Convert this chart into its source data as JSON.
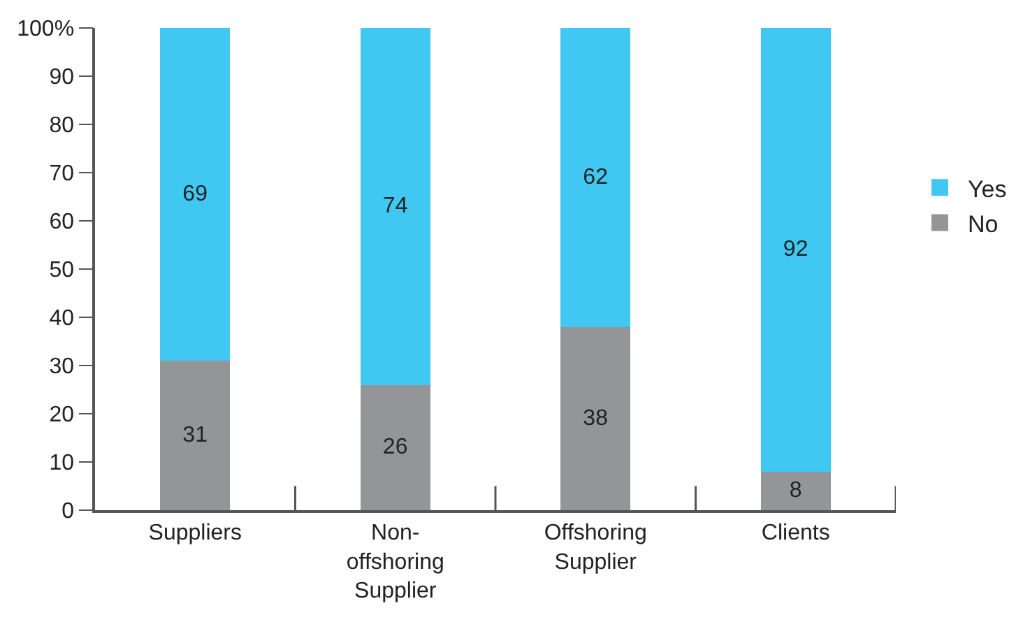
{
  "chart_data": {
    "type": "bar",
    "stacked": true,
    "categories": [
      "Suppliers",
      "Non-offshoring Supplier",
      "Offshoring Supplier",
      "Clients"
    ],
    "series": [
      {
        "name": "No",
        "color": "#939598",
        "values": [
          31,
          26,
          38,
          8
        ]
      },
      {
        "name": "Yes",
        "color": "#40c8f2",
        "values": [
          69,
          74,
          62,
          92
        ]
      }
    ],
    "ylim": [
      0,
      100
    ],
    "yticks": [
      0,
      10,
      20,
      30,
      40,
      50,
      60,
      70,
      80,
      90,
      {
        "value": 100,
        "label": "100%"
      }
    ],
    "data_labels": true,
    "legend": "right"
  }
}
